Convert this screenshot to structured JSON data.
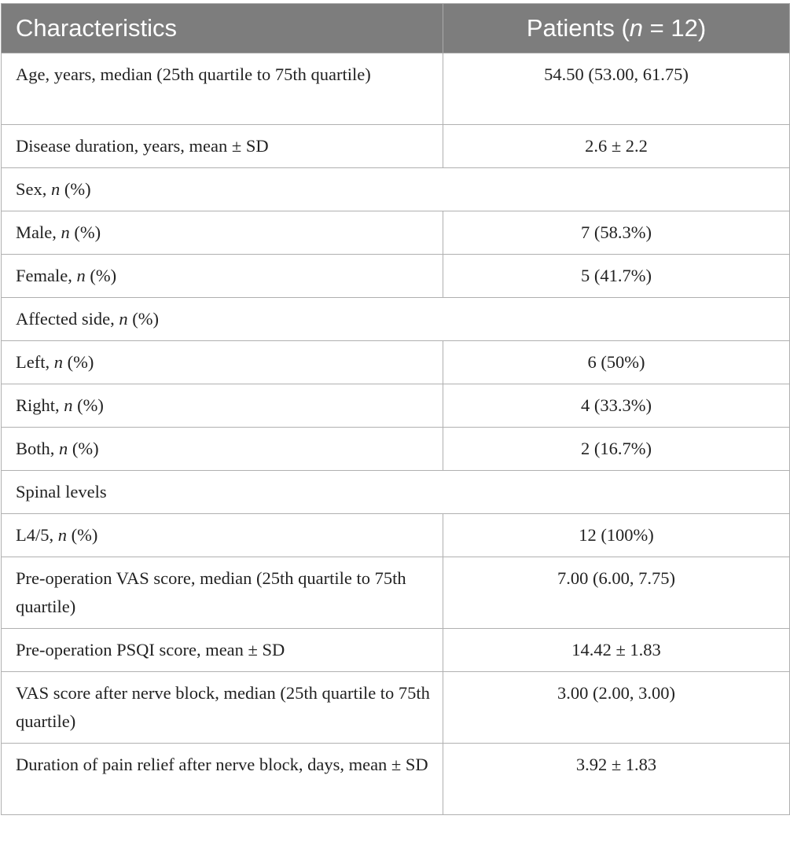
{
  "table": {
    "header": {
      "characteristics": "Characteristics",
      "patients_prefix": "Patients (",
      "patients_n": "n",
      "patients_suffix": " = 12)"
    },
    "rows": [
      {
        "label": "Age, years, median (25th quartile to 75th quartile)",
        "value": "54.50 (53.00, 61.75)"
      },
      {
        "label": "Disease duration, years, mean ± SD",
        "value": "2.6 ± 2.2"
      },
      {
        "label_pre": "Sex, ",
        "label_it": "n",
        "label_post": " (%)"
      },
      {
        "label_pre": "Male, ",
        "label_it": "n",
        "label_post": " (%)",
        "value": "7 (58.3%)"
      },
      {
        "label_pre": "Female, ",
        "label_it": "n",
        "label_post": " (%)",
        "value": "5 (41.7%)"
      },
      {
        "label_pre": "Affected side, ",
        "label_it": "n",
        "label_post": " (%)"
      },
      {
        "label_pre": "Left, ",
        "label_it": "n",
        "label_post": " (%)",
        "value": "6 (50%)"
      },
      {
        "label_pre": "Right, ",
        "label_it": "n",
        "label_post": " (%)",
        "value": "4 (33.3%)"
      },
      {
        "label_pre": "Both, ",
        "label_it": "n",
        "label_post": " (%)",
        "value": "2 (16.7%)"
      },
      {
        "label": "Spinal levels"
      },
      {
        "label_pre": "L4/5, ",
        "label_it": "n",
        "label_post": " (%)",
        "value": "12 (100%)"
      },
      {
        "label": "Pre-operation VAS score, median (25th quartile to 75th quartile)",
        "value": "7.00 (6.00, 7.75)"
      },
      {
        "label": "Pre-operation PSQI score, mean ± SD",
        "value": "14.42 ± 1.83"
      },
      {
        "label": "VAS score after nerve block, median (25th quartile to 75th quartile)",
        "value": "3.00 (2.00, 3.00)"
      },
      {
        "label": "Duration of pain relief after nerve block, days, mean ± SD",
        "value": "3.92 ± 1.83"
      }
    ]
  }
}
